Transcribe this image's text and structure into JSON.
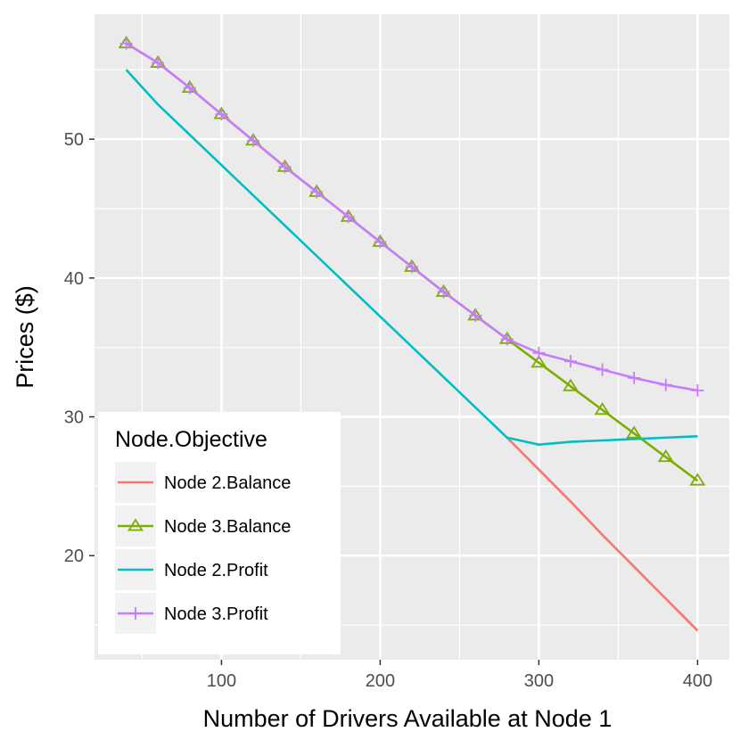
{
  "chart_data": {
    "type": "line",
    "title": "",
    "xlabel": "Number of Drivers Available at Node 1",
    "ylabel": "Prices ($)",
    "xlim": [
      20,
      420
    ],
    "ylim": [
      12.5,
      59
    ],
    "x_ticks": [
      100,
      200,
      300,
      400
    ],
    "x_tick_labels": [
      "100",
      "200",
      "300",
      "400"
    ],
    "y_ticks": [
      20,
      30,
      40,
      50
    ],
    "y_tick_labels": [
      "20",
      "30",
      "40",
      "50"
    ],
    "grid": true,
    "legend": {
      "title": "Node.Objective",
      "position": "bottom-left-inside"
    },
    "series": [
      {
        "name": "Node 2.Balance",
        "color": "#F8766D",
        "marker": "none",
        "x": [
          280,
          300,
          320,
          340,
          360,
          380,
          400
        ],
        "y": [
          28.5,
          26.2,
          23.9,
          21.5,
          19.2,
          16.9,
          14.6
        ]
      },
      {
        "name": "Node 3.Balance",
        "color": "#7CAE00",
        "marker": "triangle",
        "x": [
          40,
          60,
          80,
          100,
          120,
          140,
          160,
          180,
          200,
          220,
          240,
          260,
          280,
          300,
          320,
          340,
          360,
          380,
          400
        ],
        "y": [
          56.9,
          55.5,
          53.7,
          51.8,
          49.9,
          48.0,
          46.2,
          44.4,
          42.6,
          40.8,
          39.0,
          37.3,
          35.6,
          33.9,
          32.2,
          30.5,
          28.8,
          27.1,
          25.4
        ]
      },
      {
        "name": "Node 2.Profit",
        "color": "#00BFC4",
        "marker": "none",
        "x": [
          40,
          60,
          280,
          300,
          320,
          340,
          360,
          380,
          400
        ],
        "y": [
          55.0,
          52.5,
          28.5,
          28.0,
          28.2,
          28.3,
          28.4,
          28.5,
          28.6
        ]
      },
      {
        "name": "Node 3.Profit",
        "color": "#C77CFF",
        "marker": "plus",
        "x": [
          40,
          60,
          80,
          100,
          120,
          140,
          160,
          180,
          200,
          220,
          240,
          260,
          280,
          300,
          320,
          340,
          360,
          380,
          400
        ],
        "y": [
          56.9,
          55.5,
          53.7,
          51.8,
          49.9,
          48.0,
          46.2,
          44.4,
          42.6,
          40.8,
          39.0,
          37.3,
          35.6,
          34.6,
          34.0,
          33.4,
          32.8,
          32.3,
          31.9
        ]
      }
    ]
  }
}
